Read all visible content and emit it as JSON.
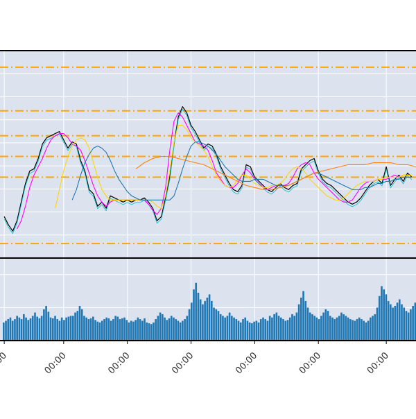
{
  "chart_data": {
    "type": "line",
    "title": "",
    "price_panel": {
      "ylim": [
        0,
        100
      ],
      "grid": true,
      "x_ticks": [
        {
          "x": 2,
          "label": "00:00"
        },
        {
          "x": 30,
          "label": "00:00"
        },
        {
          "x": 60,
          "label": "00:00"
        },
        {
          "x": 90,
          "label": "00:00"
        },
        {
          "x": 120,
          "label": "00:00"
        },
        {
          "x": 150,
          "label": "00:00"
        },
        {
          "x": 182,
          "label": "00:00"
        }
      ],
      "horizontal_levels": [
        92,
        71,
        59,
        49,
        39,
        7
      ],
      "series": [
        {
          "kind": "price",
          "color": "#000000",
          "x": [
            2,
            4,
            6,
            8,
            10,
            12,
            14,
            16,
            18,
            20,
            22,
            24,
            26,
            28,
            30,
            32,
            34,
            36,
            38,
            40,
            42,
            44,
            46,
            48,
            50,
            52,
            54,
            56,
            58,
            60,
            62,
            64,
            66,
            68,
            70,
            72,
            74,
            76,
            78,
            80,
            82,
            84,
            86,
            88,
            90,
            92,
            94,
            96,
            98,
            100,
            102,
            104,
            106,
            108,
            110,
            112,
            114,
            116,
            118,
            120,
            122,
            124,
            126,
            128,
            130,
            132,
            134,
            136,
            138,
            140,
            142,
            144,
            146,
            148,
            150,
            152,
            154,
            156,
            158,
            160,
            162,
            164,
            166,
            168,
            170,
            172,
            174,
            176,
            178,
            180,
            182,
            184,
            186,
            188,
            190,
            192,
            194
          ],
          "values": [
            20,
            16,
            13,
            18,
            27,
            36,
            42,
            43,
            48,
            55,
            58,
            59,
            60,
            61,
            57,
            53,
            56,
            55,
            47,
            42,
            33,
            31,
            25,
            27,
            24,
            30,
            29,
            28,
            27,
            28,
            27,
            28,
            28,
            29,
            27,
            24,
            18,
            20,
            29,
            39,
            55,
            68,
            73,
            70,
            64,
            61,
            57,
            53,
            55,
            54,
            50,
            44,
            40,
            36,
            33,
            32,
            35,
            45,
            44,
            39,
            37,
            35,
            33,
            32,
            34,
            36,
            34,
            33,
            35,
            36,
            43,
            45,
            47,
            48,
            42,
            38,
            36,
            35,
            33,
            31,
            29,
            27,
            26,
            27,
            29,
            32,
            35,
            37,
            38,
            36,
            44,
            35,
            38,
            40,
            37,
            41,
            39
          ]
        },
        {
          "kind": "ma-fast",
          "color": "#ff00ff",
          "x": [
            8,
            10,
            12,
            14,
            16,
            18,
            20,
            22,
            24,
            26,
            28,
            30,
            32,
            34,
            36,
            38,
            40,
            42,
            44,
            46,
            48,
            50,
            52,
            54,
            56,
            58,
            60,
            62,
            64,
            66,
            68,
            70,
            72,
            74,
            76,
            78,
            80,
            82,
            84,
            86,
            88,
            90,
            92,
            94,
            96,
            98,
            100,
            102,
            104,
            106,
            108,
            110,
            112,
            114,
            116,
            118,
            120,
            122,
            124,
            126,
            128,
            130,
            132,
            134,
            136,
            138,
            140,
            142,
            144,
            146,
            148,
            150,
            152,
            154,
            156,
            158,
            160,
            162,
            164,
            166,
            168,
            170,
            172,
            174,
            176,
            178,
            180,
            182,
            184,
            186,
            188,
            190,
            192,
            194
          ],
          "values": [
            14,
            18,
            25,
            34,
            40,
            44,
            48,
            53,
            57,
            59,
            60,
            60,
            58,
            55,
            54,
            52,
            47,
            41,
            35,
            30,
            27,
            25,
            27,
            28,
            28,
            28,
            28,
            28,
            28,
            28,
            28,
            26,
            23,
            21,
            24,
            34,
            52,
            66,
            70,
            68,
            64,
            60,
            56,
            55,
            54,
            52,
            47,
            41,
            38,
            35,
            34,
            34,
            36,
            40,
            43,
            41,
            38,
            36,
            34,
            33,
            34,
            35,
            35,
            35,
            36,
            39,
            43,
            45,
            46,
            45,
            41,
            38,
            36,
            34,
            32,
            30,
            28,
            27,
            27,
            28,
            31,
            34,
            36,
            37,
            37,
            38,
            38,
            38,
            39,
            40,
            39,
            40,
            40,
            40
          ]
        },
        {
          "kind": "ma-mid",
          "color": "#ffd600",
          "x": [
            26,
            28,
            30,
            32,
            34,
            36,
            38,
            40,
            42,
            44,
            46,
            48,
            50,
            52,
            54,
            56,
            58,
            60,
            62,
            64,
            66,
            68,
            70,
            72,
            74,
            76,
            78,
            80,
            82,
            84,
            86,
            88,
            90,
            92,
            94,
            96,
            98,
            100,
            102,
            104,
            106,
            108,
            110,
            112,
            114,
            116,
            118,
            120,
            122,
            124,
            126,
            128,
            130,
            132,
            134,
            136,
            138,
            140,
            142,
            144,
            146,
            148,
            150,
            152,
            154,
            156,
            158,
            160,
            162,
            164,
            166,
            168,
            170,
            172,
            174,
            176,
            178,
            180,
            182,
            184,
            186,
            188,
            190,
            192,
            194
          ],
          "values": [
            24,
            33,
            42,
            49,
            54,
            57,
            58,
            57,
            53,
            46,
            39,
            33,
            30,
            28,
            28,
            28,
            28,
            28,
            28,
            28,
            28,
            28,
            28,
            27,
            25,
            24,
            30,
            42,
            56,
            64,
            64,
            62,
            58,
            56,
            54,
            52,
            49,
            44,
            40,
            37,
            35,
            34,
            35,
            38,
            40,
            40,
            38,
            36,
            35,
            34,
            34,
            35,
            35,
            36,
            38,
            41,
            43,
            44,
            43,
            41,
            38,
            36,
            34,
            32,
            30,
            29,
            28,
            28,
            29,
            31,
            33,
            35,
            36,
            37,
            37,
            37,
            38,
            38,
            39,
            39,
            39,
            39,
            40,
            40,
            40
          ]
        },
        {
          "kind": "ma-slow",
          "color": "#1f77b4",
          "x": [
            34,
            36,
            38,
            40,
            42,
            44,
            46,
            48,
            50,
            52,
            54,
            56,
            58,
            60,
            62,
            64,
            66,
            68,
            70,
            72,
            74,
            76,
            78,
            80,
            82,
            84,
            86,
            88,
            90,
            92,
            94,
            96,
            98,
            100,
            102,
            104,
            106,
            108,
            110,
            112,
            114,
            116,
            118,
            120,
            122,
            124,
            126,
            128,
            130,
            132,
            134,
            136,
            138,
            140,
            142,
            144,
            146,
            148,
            150,
            152,
            154,
            156,
            158,
            160,
            162,
            164,
            166,
            168,
            170,
            172,
            174,
            176,
            178,
            180,
            182,
            184,
            186,
            188,
            190,
            192,
            194
          ],
          "values": [
            28,
            33,
            40,
            46,
            50,
            53,
            54,
            53,
            51,
            47,
            42,
            38,
            35,
            32,
            30,
            29,
            28,
            28,
            28,
            28,
            28,
            28,
            28,
            28,
            30,
            36,
            43,
            49,
            54,
            56,
            56,
            55,
            54,
            52,
            50,
            47,
            44,
            42,
            40,
            38,
            37,
            37,
            37,
            38,
            38,
            38,
            37,
            36,
            35,
            35,
            35,
            35,
            36,
            37,
            38,
            39,
            40,
            41,
            41,
            40,
            39,
            38,
            37,
            36,
            35,
            34,
            33,
            33,
            33,
            34,
            34,
            35,
            36,
            36,
            37,
            37,
            38,
            38,
            39,
            39,
            39
          ]
        },
        {
          "kind": "ma-long",
          "color": "#ff7f0e",
          "x": [
            64,
            68,
            72,
            76,
            80,
            84,
            88,
            92,
            96,
            100,
            104,
            108,
            112,
            116,
            120,
            124,
            128,
            132,
            136,
            140,
            144,
            148,
            152,
            156,
            160,
            164,
            168,
            172,
            176,
            180,
            184,
            188,
            192,
            196
          ],
          "values": [
            43,
            46,
            48,
            49,
            49,
            48,
            47,
            46,
            45,
            43,
            41,
            39,
            37,
            35,
            34,
            33,
            33,
            34,
            35,
            37,
            39,
            41,
            42,
            43,
            44,
            45,
            45,
            45,
            46,
            46,
            46,
            45,
            45,
            44
          ]
        }
      ]
    },
    "volume_panel": {
      "ylim": [
        0,
        100
      ],
      "grid": true,
      "color": "#1f77b4",
      "values": [
        22,
        24,
        26,
        28,
        24,
        26,
        30,
        28,
        26,
        32,
        28,
        25,
        27,
        30,
        34,
        29,
        27,
        30,
        38,
        42,
        35,
        28,
        27,
        30,
        26,
        24,
        28,
        25,
        28,
        29,
        30,
        30,
        34,
        36,
        42,
        38,
        30,
        28,
        26,
        27,
        29,
        25,
        23,
        22,
        24,
        26,
        28,
        27,
        24,
        26,
        30,
        29,
        26,
        27,
        28,
        25,
        22,
        24,
        23,
        25,
        28,
        26,
        24,
        27,
        22,
        21,
        20,
        22,
        26,
        30,
        34,
        32,
        28,
        25,
        27,
        30,
        28,
        26,
        24,
        22,
        24,
        26,
        30,
        38,
        46,
        62,
        70,
        58,
        50,
        44,
        48,
        52,
        56,
        48,
        40,
        38,
        36,
        32,
        30,
        28,
        30,
        34,
        30,
        28,
        26,
        24,
        22,
        26,
        28,
        24,
        22,
        21,
        23,
        24,
        22,
        26,
        28,
        26,
        24,
        30,
        28,
        32,
        34,
        30,
        28,
        26,
        24,
        25,
        28,
        32,
        30,
        34,
        44,
        52,
        60,
        48,
        40,
        34,
        32,
        30,
        28,
        26,
        30,
        34,
        38,
        36,
        30,
        28,
        26,
        28,
        30,
        34,
        32,
        30,
        28,
        26,
        25,
        24,
        26,
        28,
        26,
        24,
        22,
        24,
        28,
        30,
        32,
        40,
        54,
        66,
        62,
        56,
        48,
        44,
        40,
        42,
        46,
        50,
        44,
        40,
        36,
        34,
        38,
        42,
        46,
        40
      ]
    }
  }
}
